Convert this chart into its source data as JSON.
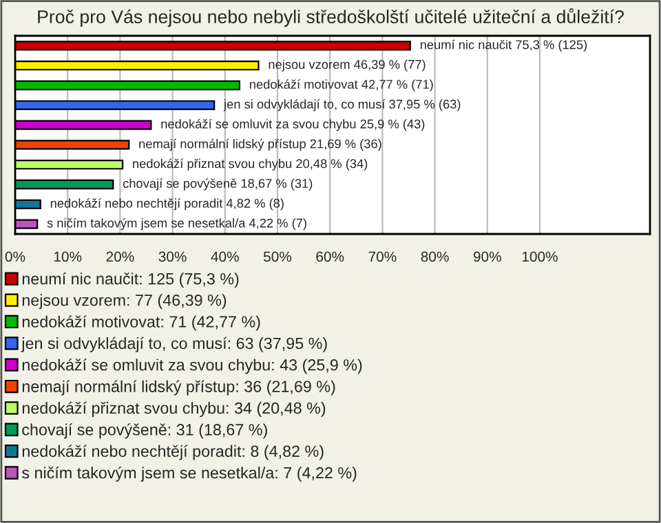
{
  "chart_data": {
    "type": "bar",
    "orientation": "horizontal",
    "title": "Proč pro Vás nejsou nebo nebyli středoškolští učitelé užiteční a důležití?",
    "categories": [
      null,
      null,
      null,
      null,
      null,
      null,
      null,
      null,
      null,
      null
    ],
    "series": [
      {
        "name": "neumí nic naučit: 125 (75,3 %)",
        "color": "#cc0000",
        "values": [
          75.3,
          null,
          null,
          null,
          null,
          null,
          null,
          null,
          null,
          null
        ],
        "value_labels": [
          "neumí nic naučit 75,3 % (125)",
          null,
          null,
          null,
          null,
          null,
          null,
          null,
          null,
          null
        ]
      },
      {
        "name": "nejsou vzorem: 77 (46,39 %)",
        "color": "#ffee00",
        "values": [
          null,
          46.39,
          null,
          null,
          null,
          null,
          null,
          null,
          null,
          null
        ],
        "value_labels": [
          null,
          "nejsou vzorem 46,39 % (77)",
          null,
          null,
          null,
          null,
          null,
          null,
          null,
          null
        ]
      },
      {
        "name": "nedokáží motivovat: 71 (42,77 %)",
        "color": "#00bb00",
        "values": [
          null,
          null,
          42.77,
          null,
          null,
          null,
          null,
          null,
          null,
          null
        ],
        "value_labels": [
          null,
          null,
          "nedokáží motivovat 42,77 % (71)",
          null,
          null,
          null,
          null,
          null,
          null,
          null
        ]
      },
      {
        "name": "jen si odvykládají to, co musí: 63 (37,95 %)",
        "color": "#3366ee",
        "values": [
          null,
          null,
          null,
          37.95,
          null,
          null,
          null,
          null,
          null,
          null
        ],
        "value_labels": [
          null,
          null,
          null,
          "jen si odvykládají to, co musí 37,95 % (63)",
          null,
          null,
          null,
          null,
          null,
          null
        ]
      },
      {
        "name": "nedokáží se omluvit za svou chybu: 43 (25,9 %)",
        "color": "#cc00cc",
        "values": [
          null,
          null,
          null,
          null,
          25.9,
          null,
          null,
          null,
          null,
          null
        ],
        "value_labels": [
          null,
          null,
          null,
          null,
          "nedokáží se omluvit za svou chybu 25,9 % (43)",
          null,
          null,
          null,
          null,
          null
        ]
      },
      {
        "name": "nemají normální lidský přístup: 36 (21,69 %)",
        "color": "#ee4400",
        "values": [
          null,
          null,
          null,
          null,
          null,
          21.69,
          null,
          null,
          null,
          null
        ],
        "value_labels": [
          null,
          null,
          null,
          null,
          null,
          "nemají normální lidský přístup 21,69 % (36)",
          null,
          null,
          null,
          null
        ]
      },
      {
        "name": "nedokáží přiznat svou chybu: 34 (20,48 %)",
        "color": "#bbff66",
        "values": [
          null,
          null,
          null,
          null,
          null,
          null,
          20.48,
          null,
          null,
          null
        ],
        "value_labels": [
          null,
          null,
          null,
          null,
          null,
          null,
          "nedokáží přiznat svou chybu 20,48 % (34)",
          null,
          null,
          null
        ]
      },
      {
        "name": "chovají se povýšeně: 31 (18,67 %)",
        "color": "#009955",
        "values": [
          null,
          null,
          null,
          null,
          null,
          null,
          null,
          18.67,
          null,
          null
        ],
        "value_labels": [
          null,
          null,
          null,
          null,
          null,
          null,
          null,
          "chovají se povýšeně 18,67 % (31)",
          null,
          null
        ]
      },
      {
        "name": "nedokáží nebo nechtějí poradit: 8 (4,82 %)",
        "color": "#117799",
        "values": [
          null,
          null,
          null,
          null,
          null,
          null,
          null,
          null,
          4.82,
          null
        ],
        "value_labels": [
          null,
          null,
          null,
          null,
          null,
          null,
          null,
          null,
          "nedokáží nebo nechtějí poradit 4,82 % (8)",
          null
        ]
      },
      {
        "name": "s ničím takovým jsem se nesetkal/a: 7 (4,22 %)",
        "color": "#bb55bb",
        "values": [
          null,
          null,
          null,
          null,
          null,
          null,
          null,
          null,
          null,
          4.22
        ],
        "value_labels": [
          null,
          null,
          null,
          null,
          null,
          null,
          null,
          null,
          null,
          "s ničím takovým jsem se nesetkal/a 4,22 % (7)"
        ]
      }
    ],
    "xlim": [
      0,
      121
    ],
    "xticks": [
      {
        "value": 0,
        "label": "0%"
      },
      {
        "value": 10,
        "label": "10%"
      },
      {
        "value": 20,
        "label": "20%"
      },
      {
        "value": 30,
        "label": "30%"
      },
      {
        "value": 40,
        "label": "40%"
      },
      {
        "value": 50,
        "label": "50%"
      },
      {
        "value": 60,
        "label": "60%"
      },
      {
        "value": 70,
        "label": "70%"
      },
      {
        "value": 80,
        "label": "80%"
      },
      {
        "value": 90,
        "label": "90%"
      },
      {
        "value": 100,
        "label": "100%"
      }
    ],
    "grid": "x",
    "tick_labels": "x",
    "legend": "bottom"
  }
}
